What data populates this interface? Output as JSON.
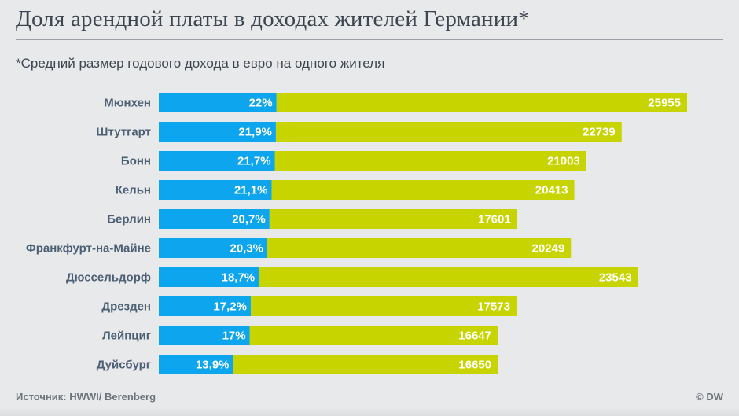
{
  "title": "Доля арендной платы в доходах жителей Германии*",
  "subtitle": "*Средний размер годового дохода в евро на одного жителя",
  "source": "Источник: HWWI/ Berenberg",
  "logo": "© DW",
  "colors": {
    "share": "#0ea5ef",
    "income": "#c8d400",
    "category_text": "#4d5f75"
  },
  "chart_data": {
    "type": "bar",
    "orientation": "horizontal",
    "stacked": true,
    "title": "Доля арендной платы в доходах жителей Германии*",
    "subtitle": "*Средний размер годового дохода в евро на одного жителя",
    "categories": [
      "Мюнхен",
      "Штутгарт",
      "Бонн",
      "Кельн",
      "Берлин",
      "Франкфурт-на-Майне",
      "Дюссельдорф",
      "Дрезден",
      "Лейпциг",
      "Дуйсбург"
    ],
    "series": [
      {
        "name": "Доля арендной платы",
        "values": [
          22,
          21.9,
          21.7,
          21.1,
          20.7,
          20.3,
          18.7,
          17.2,
          17,
          13.9
        ],
        "labels": [
          "22%",
          "21,9%",
          "21,7%",
          "21,1%",
          "20,7%",
          "20,3%",
          "18,7%",
          "17,2%",
          "17%",
          "13,9%"
        ]
      },
      {
        "name": "Средний годовой доход, евро",
        "values": [
          25955,
          22739,
          21003,
          20413,
          17601,
          20249,
          23543,
          17573,
          16647,
          16650
        ],
        "labels": [
          "25955",
          "22739",
          "21003",
          "20413",
          "17601",
          "20249",
          "23543",
          "17573",
          "16647",
          "16650"
        ]
      }
    ],
    "xlabel": "",
    "ylabel": ""
  }
}
